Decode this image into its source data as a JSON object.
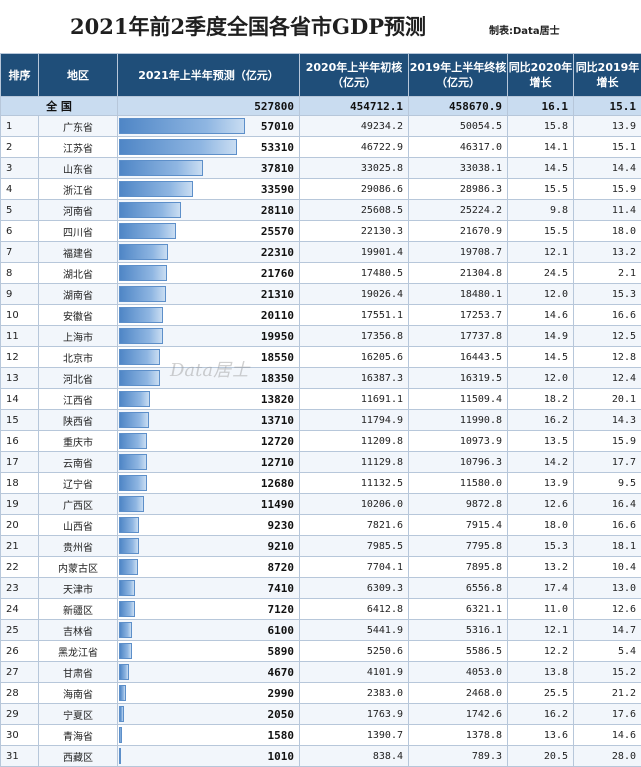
{
  "title": "2021年前2季度全国各省市GDP预测",
  "credit": "制表:Data居士",
  "watermark": "Data居士",
  "headers": {
    "rank": "排序",
    "region": "地区",
    "gdp": "2021年上半年预测（亿元）",
    "prelim2020": "2020年上半年初核（亿元）",
    "final2019": "2019年上半年终核（亿元）",
    "yoy2020": "同比2020年增长",
    "yoy2019": "同比2019年增长"
  },
  "national": {
    "label": "全 国",
    "gdp": "527800",
    "prelim2020": "454712.1",
    "final2019": "458670.9",
    "yoy2020": "16.1",
    "yoy2019": "15.1"
  },
  "colors": {
    "header": "#1f4e79",
    "bar": "#4f86c6",
    "national_row": "#c9dcf0"
  },
  "chart_data": {
    "type": "table",
    "columns": [
      "排序",
      "地区",
      "2021年上半年预测（亿元）",
      "2020年上半年初核（亿元）",
      "2019年上半年终核（亿元）",
      "同比2020年增长",
      "同比2019年增长"
    ],
    "bar_column": "2021年上半年预测（亿元）",
    "rows": [
      {
        "rank": "1",
        "region": "广东省",
        "gdp": 57010,
        "prelim2020": "49234.2",
        "final2019": "50054.5",
        "yoy2020": "15.8",
        "yoy2019": "13.9"
      },
      {
        "rank": "2",
        "region": "江苏省",
        "gdp": 53310,
        "prelim2020": "46722.9",
        "final2019": "46317.0",
        "yoy2020": "14.1",
        "yoy2019": "15.1"
      },
      {
        "rank": "3",
        "region": "山东省",
        "gdp": 37810,
        "prelim2020": "33025.8",
        "final2019": "33038.1",
        "yoy2020": "14.5",
        "yoy2019": "14.4"
      },
      {
        "rank": "4",
        "region": "浙江省",
        "gdp": 33590,
        "prelim2020": "29086.6",
        "final2019": "28986.3",
        "yoy2020": "15.5",
        "yoy2019": "15.9"
      },
      {
        "rank": "5",
        "region": "河南省",
        "gdp": 28110,
        "prelim2020": "25608.5",
        "final2019": "25224.2",
        "yoy2020": "9.8",
        "yoy2019": "11.4"
      },
      {
        "rank": "6",
        "region": "四川省",
        "gdp": 25570,
        "prelim2020": "22130.3",
        "final2019": "21670.9",
        "yoy2020": "15.5",
        "yoy2019": "18.0"
      },
      {
        "rank": "7",
        "region": "福建省",
        "gdp": 22310,
        "prelim2020": "19901.4",
        "final2019": "19708.7",
        "yoy2020": "12.1",
        "yoy2019": "13.2"
      },
      {
        "rank": "8",
        "region": "湖北省",
        "gdp": 21760,
        "prelim2020": "17480.5",
        "final2019": "21304.8",
        "yoy2020": "24.5",
        "yoy2019": "2.1"
      },
      {
        "rank": "9",
        "region": "湖南省",
        "gdp": 21310,
        "prelim2020": "19026.4",
        "final2019": "18480.1",
        "yoy2020": "12.0",
        "yoy2019": "15.3"
      },
      {
        "rank": "10",
        "region": "安徽省",
        "gdp": 20110,
        "prelim2020": "17551.1",
        "final2019": "17253.7",
        "yoy2020": "14.6",
        "yoy2019": "16.6"
      },
      {
        "rank": "11",
        "region": "上海市",
        "gdp": 19950,
        "prelim2020": "17356.8",
        "final2019": "17737.8",
        "yoy2020": "14.9",
        "yoy2019": "12.5"
      },
      {
        "rank": "12",
        "region": "北京市",
        "gdp": 18550,
        "prelim2020": "16205.6",
        "final2019": "16443.5",
        "yoy2020": "14.5",
        "yoy2019": "12.8"
      },
      {
        "rank": "13",
        "region": "河北省",
        "gdp": 18350,
        "prelim2020": "16387.3",
        "final2019": "16319.5",
        "yoy2020": "12.0",
        "yoy2019": "12.4"
      },
      {
        "rank": "14",
        "region": "江西省",
        "gdp": 13820,
        "prelim2020": "11691.1",
        "final2019": "11509.4",
        "yoy2020": "18.2",
        "yoy2019": "20.1"
      },
      {
        "rank": "15",
        "region": "陕西省",
        "gdp": 13710,
        "prelim2020": "11794.9",
        "final2019": "11990.8",
        "yoy2020": "16.2",
        "yoy2019": "14.3"
      },
      {
        "rank": "16",
        "region": "重庆市",
        "gdp": 12720,
        "prelim2020": "11209.8",
        "final2019": "10973.9",
        "yoy2020": "13.5",
        "yoy2019": "15.9"
      },
      {
        "rank": "17",
        "region": "云南省",
        "gdp": 12710,
        "prelim2020": "11129.8",
        "final2019": "10796.3",
        "yoy2020": "14.2",
        "yoy2019": "17.7"
      },
      {
        "rank": "18",
        "region": "辽宁省",
        "gdp": 12680,
        "prelim2020": "11132.5",
        "final2019": "11580.0",
        "yoy2020": "13.9",
        "yoy2019": "9.5"
      },
      {
        "rank": "19",
        "region": "广西区",
        "gdp": 11490,
        "prelim2020": "10206.0",
        "final2019": "9872.8",
        "yoy2020": "12.6",
        "yoy2019": "16.4"
      },
      {
        "rank": "20",
        "region": "山西省",
        "gdp": 9230,
        "prelim2020": "7821.6",
        "final2019": "7915.4",
        "yoy2020": "18.0",
        "yoy2019": "16.6"
      },
      {
        "rank": "21",
        "region": "贵州省",
        "gdp": 9210,
        "prelim2020": "7985.5",
        "final2019": "7795.8",
        "yoy2020": "15.3",
        "yoy2019": "18.1"
      },
      {
        "rank": "22",
        "region": "内蒙古区",
        "gdp": 8720,
        "prelim2020": "7704.1",
        "final2019": "7895.8",
        "yoy2020": "13.2",
        "yoy2019": "10.4"
      },
      {
        "rank": "23",
        "region": "天津市",
        "gdp": 7410,
        "prelim2020": "6309.3",
        "final2019": "6556.8",
        "yoy2020": "17.4",
        "yoy2019": "13.0"
      },
      {
        "rank": "24",
        "region": "新疆区",
        "gdp": 7120,
        "prelim2020": "6412.8",
        "final2019": "6321.1",
        "yoy2020": "11.0",
        "yoy2019": "12.6"
      },
      {
        "rank": "25",
        "region": "吉林省",
        "gdp": 6100,
        "prelim2020": "5441.9",
        "final2019": "5316.1",
        "yoy2020": "12.1",
        "yoy2019": "14.7"
      },
      {
        "rank": "26",
        "region": "黑龙江省",
        "gdp": 5890,
        "prelim2020": "5250.6",
        "final2019": "5586.5",
        "yoy2020": "12.2",
        "yoy2019": "5.4"
      },
      {
        "rank": "27",
        "region": "甘肃省",
        "gdp": 4670,
        "prelim2020": "4101.9",
        "final2019": "4053.0",
        "yoy2020": "13.8",
        "yoy2019": "15.2"
      },
      {
        "rank": "28",
        "region": "海南省",
        "gdp": 2990,
        "prelim2020": "2383.0",
        "final2019": "2468.0",
        "yoy2020": "25.5",
        "yoy2019": "21.2"
      },
      {
        "rank": "29",
        "region": "宁夏区",
        "gdp": 2050,
        "prelim2020": "1763.9",
        "final2019": "1742.6",
        "yoy2020": "16.2",
        "yoy2019": "17.6"
      },
      {
        "rank": "30",
        "region": "青海省",
        "gdp": 1580,
        "prelim2020": "1390.7",
        "final2019": "1378.8",
        "yoy2020": "13.6",
        "yoy2019": "14.6"
      },
      {
        "rank": "31",
        "region": "西藏区",
        "gdp": 1010,
        "prelim2020": "838.4",
        "final2019": "789.3",
        "yoy2020": "20.5",
        "yoy2019": "28.0"
      }
    ]
  }
}
